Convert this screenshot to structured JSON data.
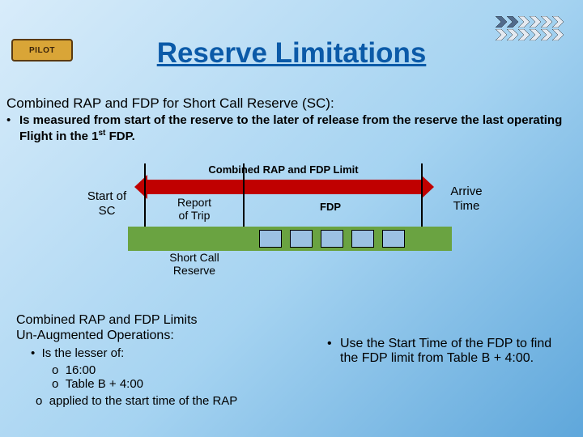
{
  "colors": {
    "bg_top": "#d8ecfa",
    "bg_bottom": "#5fa7db",
    "title": "#0b5aa8",
    "bar_red": "#c00000",
    "bar_green": "#6aa341",
    "box_fill": "#9cc1e3",
    "chevron": "#516b8c",
    "black": "#000000"
  },
  "logo": {
    "text": "PILOT"
  },
  "title": "Reserve Limitations",
  "subtitle": "Combined RAP and FDP for Short Call Reserve (SC):",
  "bullet1": "Is measured from start of the reserve to the later of release from the reserve the last operating Flight in the 1",
  "bullet1_sup": "st",
  "bullet1_tail": " FDP.",
  "diagram": {
    "combined_label": "Combined RAP and FDP Limit",
    "start_sc": "Start of\nSC",
    "report": "Report\nof Trip",
    "short_call": "Short Call\nReserve",
    "fdp": "FDP",
    "arrive": "Arrive\nTime",
    "box_count": 5
  },
  "lower_left": {
    "heading1": "Combined RAP and FDP Limits",
    "heading2": "Un-Augmented Operations:",
    "l1": "Is the lesser of:",
    "l1a": "16:00",
    "l1b": "Table B + 4:00",
    "l2": "applied to the start time of the RAP"
  },
  "lower_right": {
    "text": "Use the Start Time of the FDP to find the FDP limit from Table B + 4:00."
  }
}
